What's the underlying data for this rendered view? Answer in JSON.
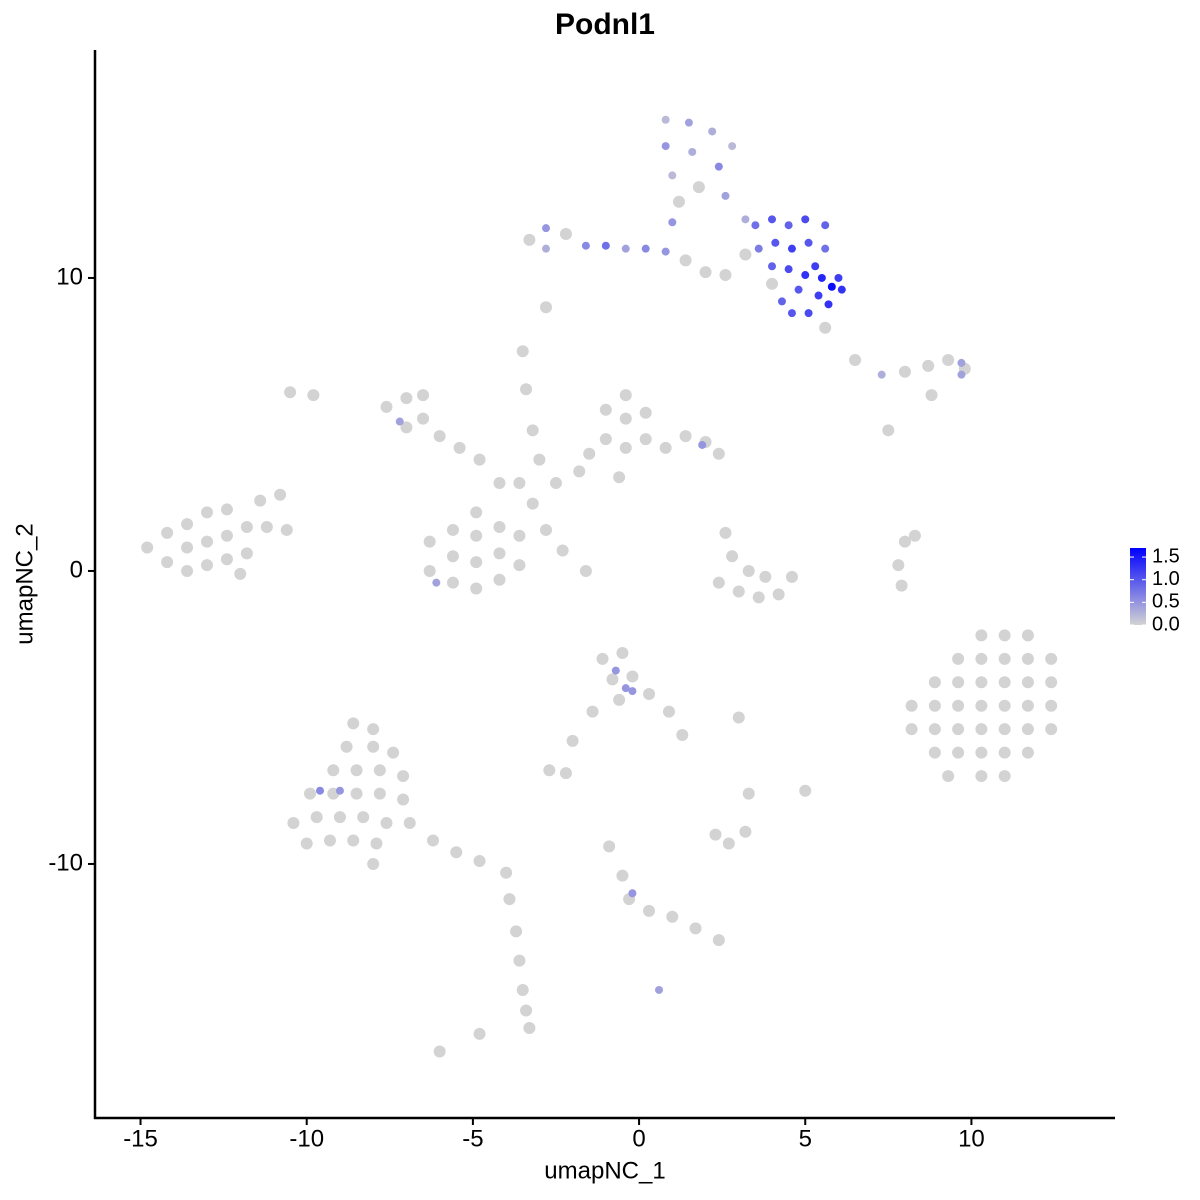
{
  "chart_data": {
    "type": "scatter",
    "title": "Podnl1",
    "x_label": "umapNC_1",
    "y_label": "umapNC_2",
    "xlim": [
      -16.37,
      14.32
    ],
    "ylim": [
      -18.67,
      17.78
    ],
    "xticks": [
      -15,
      -10,
      -5,
      0,
      5,
      10
    ],
    "yticks": [
      -10,
      0,
      10
    ],
    "color_low": "#d3d3d3",
    "color_high": "#0000ff",
    "clim": [
      0,
      1.7
    ],
    "cticks": [
      {
        "value": 0,
        "label": "0.0"
      },
      {
        "value": 0.5,
        "label": "0.5"
      },
      {
        "value": 1,
        "label": "1.0"
      },
      {
        "value": 1.5,
        "label": "1.5"
      }
    ],
    "x": [
      -14.8,
      -14.2,
      -14.2,
      -13.6,
      -13.6,
      -13.6,
      -13.0,
      -13.0,
      -13.0,
      -12.4,
      -12.4,
      -12.4,
      -11.8,
      -11.8,
      -11.4,
      -11.2,
      -10.8,
      -10.6,
      -12.0,
      10.3,
      11.0,
      11.7,
      9.6,
      10.3,
      11.0,
      11.7,
      12.4,
      8.9,
      9.6,
      10.3,
      11.0,
      11.7,
      12.4,
      8.2,
      8.9,
      9.6,
      10.3,
      11.0,
      11.7,
      12.4,
      8.2,
      8.9,
      9.6,
      10.3,
      11.0,
      11.7,
      12.4,
      8.9,
      9.6,
      10.3,
      11.0,
      11.7,
      9.3,
      10.3,
      11.0,
      8.0,
      7.8,
      7.9,
      8.3,
      -8.6,
      -8.0,
      -8.8,
      -8.0,
      -7.4,
      -9.2,
      -8.5,
      -7.8,
      -7.1,
      -9.9,
      -9.2,
      -8.5,
      -7.8,
      -7.1,
      -10.4,
      -9.7,
      -9.0,
      -8.3,
      -7.6,
      -6.9,
      -10.0,
      -9.3,
      -8.6,
      -7.9,
      -6.2,
      -5.5,
      -4.8,
      -4.0,
      -8.0,
      -3.9,
      -3.7,
      -3.6,
      -3.5,
      -3.4,
      -3.3,
      -9.6,
      -9.0,
      -6.3,
      -6.3,
      -5.6,
      -5.6,
      -5.6,
      -4.9,
      -4.9,
      -4.9,
      -4.9,
      -4.2,
      -4.2,
      -4.2,
      -3.6,
      -3.6,
      -6.1,
      -7.6,
      -7.0,
      -6.5,
      -6.5,
      -7.0,
      -6.0,
      -5.4,
      -4.8,
      -7.2,
      -4.2,
      -3.6,
      -3.2,
      -3.0,
      -3.2,
      -3.4,
      -3.5,
      -2.8,
      -2.3,
      -1.6,
      -2.5,
      -1.8,
      -1.5,
      -1.0,
      -1.0,
      -0.4,
      -0.4,
      -0.4,
      0.2,
      0.2,
      0.8,
      1.4,
      2.0,
      2.4,
      -0.6,
      1.9,
      2.6,
      2.8,
      3.3,
      3.8,
      2.4,
      3.0,
      3.6,
      4.2,
      4.6,
      -1.1,
      -0.5,
      -0.8,
      -0.2,
      0.3,
      0.9,
      1.3,
      -0.6,
      -0.7,
      -0.4,
      -0.2,
      -1.4,
      -2.0,
      -2.7,
      -2.2,
      2.7,
      3.2,
      2.3,
      3.0,
      5.0,
      3.3,
      -0.9,
      -0.5,
      -0.3,
      0.3,
      1.0,
      1.7,
      2.4,
      -0.2,
      0.6,
      -6.0,
      -4.8,
      -10.5,
      -9.8,
      -2.8,
      0.8,
      1.5,
      2.2,
      2.8,
      0.8,
      1.6,
      2.4,
      1.0,
      1.8,
      2.6,
      1.2,
      3.2,
      1.0,
      -3.3,
      -2.8,
      -2.8,
      -2.2,
      -1.6,
      -1.0,
      -0.4,
      0.2,
      0.8,
      1.4,
      2.0,
      2.6,
      3.5,
      4.0,
      4.5,
      5.0,
      5.6,
      3.6,
      4.1,
      4.6,
      5.1,
      5.6,
      4.0,
      4.5,
      5.0,
      5.5,
      5.8,
      6.1,
      5.4,
      4.8,
      4.3,
      4.6,
      5.1,
      5.7,
      6.0,
      5.3,
      3.2,
      4.0,
      5.6,
      6.5,
      7.3,
      8.0,
      8.7,
      9.3,
      9.8,
      9.7,
      9.7,
      8.8,
      7.5
    ],
    "y": [
      0.8,
      0.3,
      1.3,
      0.0,
      0.8,
      1.6,
      0.2,
      1.0,
      2.0,
      0.4,
      1.2,
      2.1,
      0.6,
      1.5,
      2.4,
      1.5,
      2.6,
      1.4,
      -0.1,
      -2.2,
      -2.2,
      -2.2,
      -3.0,
      -3.0,
      -3.0,
      -3.0,
      -3.0,
      -3.8,
      -3.8,
      -3.8,
      -3.8,
      -3.8,
      -3.8,
      -4.6,
      -4.6,
      -4.6,
      -4.6,
      -4.6,
      -4.6,
      -4.6,
      -5.4,
      -5.4,
      -5.4,
      -5.4,
      -5.4,
      -5.4,
      -5.4,
      -6.2,
      -6.2,
      -6.2,
      -6.2,
      -6.2,
      -7.0,
      -7.0,
      -7.0,
      1.0,
      0.2,
      -0.5,
      1.2,
      -5.2,
      -5.4,
      -6.0,
      -6.0,
      -6.2,
      -6.8,
      -6.8,
      -6.8,
      -7.0,
      -7.6,
      -7.6,
      -7.6,
      -7.6,
      -7.8,
      -8.6,
      -8.4,
      -8.4,
      -8.4,
      -8.6,
      -8.6,
      -9.3,
      -9.2,
      -9.2,
      -9.3,
      -9.2,
      -9.6,
      -9.9,
      -10.3,
      -10.0,
      -11.2,
      -12.3,
      -13.3,
      -14.3,
      -15.0,
      -15.6,
      -7.5,
      -7.5,
      0.0,
      1.0,
      -0.4,
      0.5,
      1.4,
      -0.6,
      0.3,
      1.2,
      2.0,
      -0.3,
      0.6,
      1.5,
      0.2,
      1.2,
      -0.4,
      5.6,
      5.9,
      6.0,
      5.2,
      4.9,
      4.6,
      4.2,
      3.8,
      5.1,
      3.0,
      3.0,
      2.3,
      3.8,
      4.8,
      6.2,
      7.5,
      1.4,
      0.7,
      0.0,
      3.0,
      3.4,
      4.0,
      4.5,
      5.5,
      4.2,
      5.2,
      6.0,
      4.5,
      5.4,
      4.2,
      4.6,
      4.4,
      4.0,
      3.2,
      4.3,
      1.3,
      0.5,
      0.0,
      -0.2,
      -0.4,
      -0.7,
      -0.9,
      -0.8,
      -0.2,
      -3.0,
      -2.8,
      -3.7,
      -3.6,
      -4.2,
      -4.8,
      -5.6,
      -4.4,
      -3.4,
      -4.0,
      -4.1,
      -4.8,
      -5.8,
      -6.8,
      -6.9,
      -9.3,
      -8.9,
      -9.0,
      -5.0,
      -7.5,
      -7.6,
      -9.4,
      -10.4,
      -11.2,
      -11.6,
      -11.8,
      -12.2,
      -12.6,
      -11.0,
      -14.3,
      -16.4,
      -15.8,
      6.1,
      6.0,
      9.0,
      15.4,
      15.3,
      15.0,
      14.5,
      14.5,
      14.3,
      13.8,
      13.5,
      13.1,
      12.8,
      12.6,
      12.0,
      11.9,
      11.3,
      11.7,
      11.0,
      11.5,
      11.1,
      11.1,
      11.0,
      11.0,
      10.9,
      10.6,
      10.2,
      10.1,
      11.8,
      12.0,
      11.8,
      12.0,
      11.8,
      11.0,
      11.2,
      11.0,
      11.2,
      11.0,
      10.4,
      10.3,
      10.1,
      10.0,
      9.7,
      9.6,
      9.4,
      9.6,
      9.2,
      8.8,
      8.8,
      9.1,
      10.0,
      10.4,
      10.8,
      9.8,
      8.3,
      7.2,
      6.7,
      6.8,
      7.0,
      7.2,
      6.9,
      7.1,
      6.7,
      6.0,
      4.8
    ],
    "values": [
      0,
      0,
      0,
      0,
      0,
      0,
      0,
      0,
      0,
      0,
      0,
      0,
      0,
      0,
      0,
      0,
      0,
      0,
      0,
      0,
      0,
      0,
      0,
      0,
      0,
      0,
      0,
      0,
      0,
      0,
      0,
      0,
      0,
      0,
      0,
      0,
      0,
      0,
      0,
      0,
      0,
      0,
      0,
      0,
      0,
      0,
      0,
      0,
      0,
      0,
      0,
      0,
      0,
      0,
      0,
      0,
      0,
      0,
      0,
      0,
      0,
      0,
      0,
      0,
      0,
      0,
      0,
      0,
      0,
      0,
      0,
      0,
      0,
      0,
      0,
      0,
      0,
      0,
      0,
      0,
      0,
      0,
      0,
      0,
      0,
      0,
      0,
      0,
      0,
      0,
      0,
      0,
      0,
      0,
      0.6,
      0.5,
      0,
      0,
      0,
      0,
      0,
      0,
      0,
      0,
      0,
      0,
      0,
      0,
      0,
      0,
      0.4,
      0,
      0,
      0,
      0,
      0,
      0,
      0,
      0,
      0.4,
      0,
      0,
      0,
      0,
      0,
      0,
      0,
      0,
      0,
      0,
      0,
      0,
      0,
      0,
      0,
      0,
      0,
      0,
      0,
      0,
      0,
      0,
      0,
      0,
      0,
      0.5,
      0,
      0,
      0,
      0,
      0,
      0,
      0,
      0,
      0,
      0,
      0,
      0,
      0,
      0,
      0,
      0,
      0,
      0.5,
      0.5,
      0.5,
      0,
      0,
      0,
      0,
      0,
      0,
      0,
      0,
      0,
      0,
      0,
      0,
      0,
      0,
      0,
      0,
      0,
      0.5,
      0.4,
      0,
      0,
      0,
      0,
      0,
      0.2,
      0.4,
      0.3,
      0.2,
      0.5,
      0.3,
      0.6,
      0.2,
      0,
      0.4,
      0,
      0.3,
      0.5,
      0,
      0.5,
      0.3,
      0,
      0.6,
      0.8,
      0.4,
      0.6,
      0.5,
      0,
      0,
      0,
      0.8,
      1.0,
      0.9,
      1.1,
      0.9,
      0.7,
      1.0,
      1.2,
      1.0,
      0.8,
      0.9,
      1.1,
      1.3,
      1.4,
      1.6,
      1.3,
      1.2,
      1.0,
      0.9,
      1.0,
      1.1,
      1.3,
      1.2,
      1.2,
      0,
      0,
      0,
      0,
      0.3,
      0,
      0,
      0,
      0,
      0.4,
      0.4,
      0,
      0
    ]
  }
}
